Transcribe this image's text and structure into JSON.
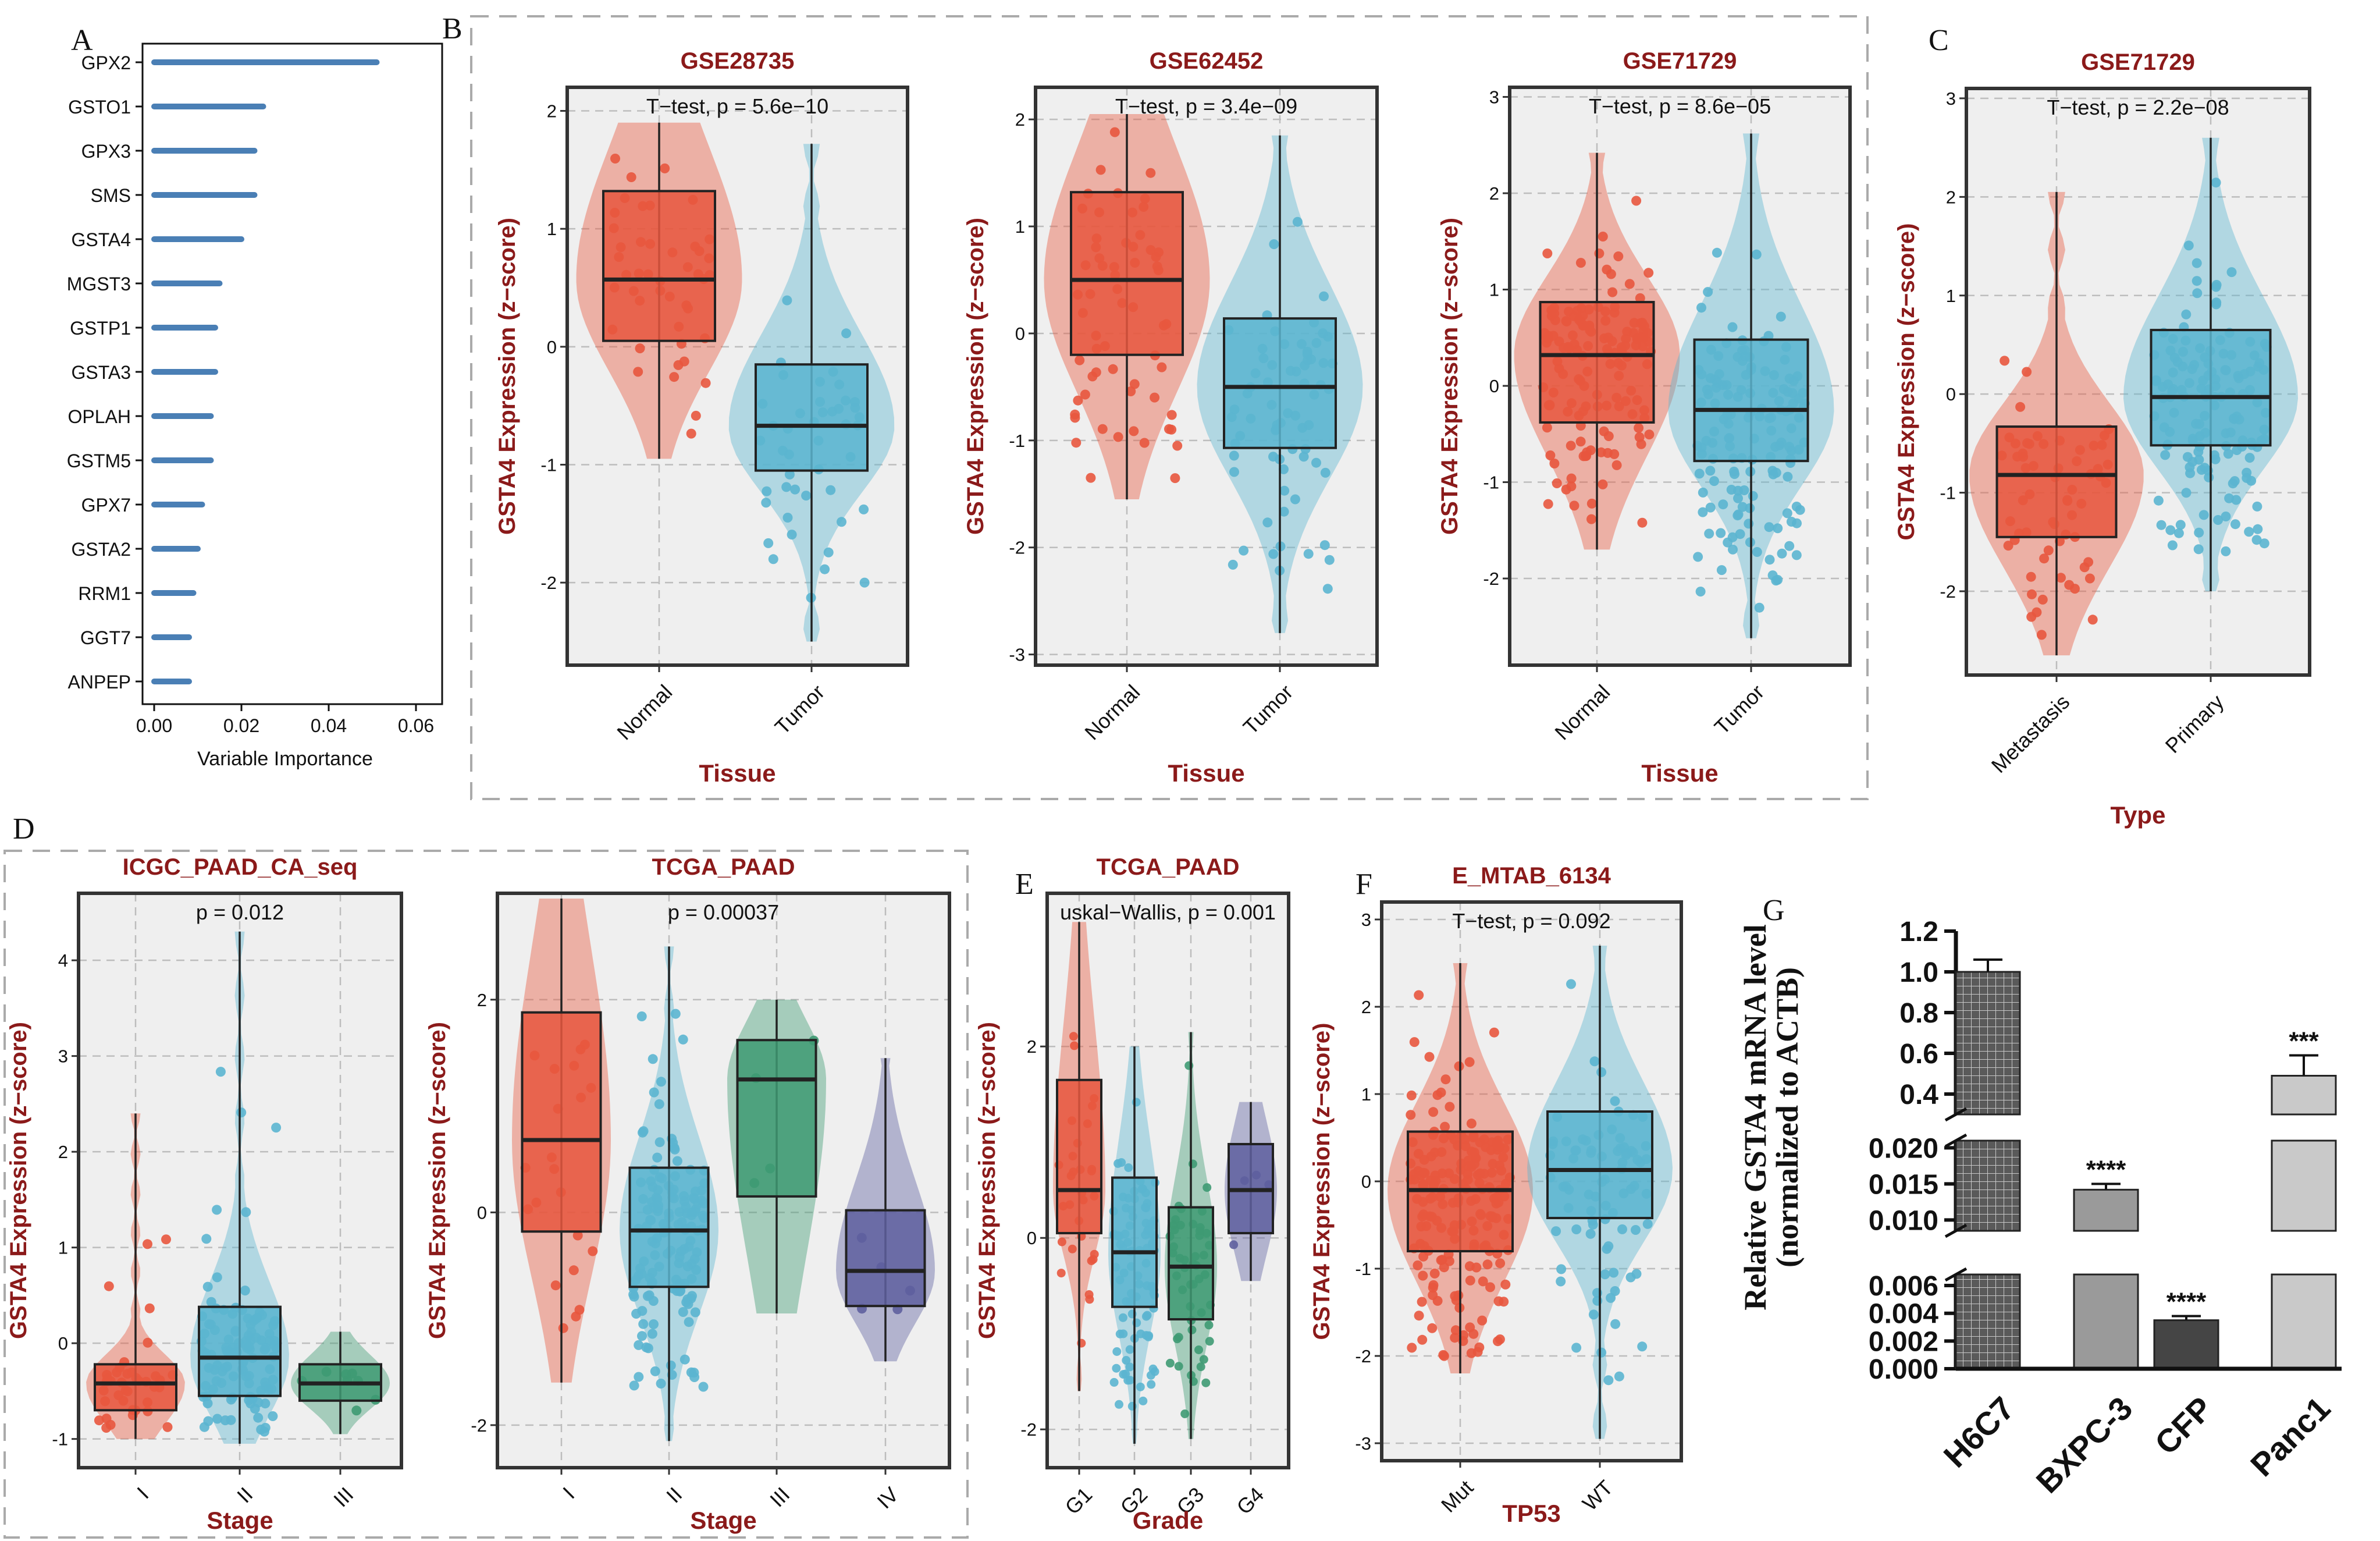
{
  "figure": {
    "panel_letters": [
      "A",
      "B",
      "C",
      "D",
      "E",
      "F",
      "G"
    ],
    "colors": {
      "dark_red": "#8B1A1A",
      "normal_fill": "#E8573E",
      "tumor_fill": "#5BB5D0",
      "stage3_fill": "#3E9A73",
      "stage4_fill": "#5E5F9F",
      "bar_blue": "#4A7FB5",
      "panel_bg": "#EFEFEF"
    }
  },
  "chart_data": [
    {
      "id": "A",
      "type": "bar",
      "orientation": "horizontal",
      "categories": [
        "GPX2",
        "GSTO1",
        "GPX3",
        "SMS",
        "GSTA4",
        "MGST3",
        "GSTP1",
        "GSTA3",
        "OPLAH",
        "GSTM5",
        "GPX7",
        "GSTA2",
        "RRM1",
        "GGT7",
        "ANPEP"
      ],
      "values": [
        0.051,
        0.025,
        0.023,
        0.023,
        0.02,
        0.015,
        0.014,
        0.014,
        0.013,
        0.013,
        0.011,
        0.01,
        0.009,
        0.008,
        0.008
      ],
      "xlabel": "Variable Importance",
      "xticks": [
        "0.00",
        "0.02",
        "0.04",
        "0.06"
      ],
      "xlim": [
        0,
        0.06
      ]
    },
    {
      "id": "B1",
      "type": "violin-box",
      "title": "GSE28735",
      "annotation": "T−test, p = 5.6e−10",
      "xlabel": "Tissue",
      "ylabel": "GSTA4 Expression (z−score)",
      "ylim": [
        -2.7,
        2.2
      ],
      "yticks": [
        -2,
        -1,
        0,
        1,
        2
      ],
      "groups": [
        {
          "name": "Normal",
          "n": 45,
          "min": -0.95,
          "q1": 0.05,
          "median": 0.57,
          "q3": 1.32,
          "max": 1.9
        },
        {
          "name": "Tumor",
          "n": 45,
          "min": -2.5,
          "q1": -1.05,
          "median": -0.67,
          "q3": -0.15,
          "max": 1.72
        }
      ]
    },
    {
      "id": "B2",
      "type": "violin-box",
      "title": "GSE62452",
      "annotation": "T−test, p = 3.4e−09",
      "xlabel": "Tissue",
      "ylabel": "GSTA4 Expression (z−score)",
      "ylim": [
        -3.1,
        2.3
      ],
      "yticks": [
        -3,
        -2,
        -1,
        0,
        1,
        2
      ],
      "groups": [
        {
          "name": "Normal",
          "n": 61,
          "min": -1.55,
          "q1": -0.2,
          "median": 0.5,
          "q3": 1.32,
          "max": 2.05
        },
        {
          "name": "Tumor",
          "n": 69,
          "min": -2.8,
          "q1": -1.07,
          "median": -0.5,
          "q3": 0.14,
          "max": 1.85
        }
      ]
    },
    {
      "id": "B3",
      "type": "violin-box",
      "title": "GSE71729",
      "annotation": "T−test, p = 8.6e−05",
      "xlabel": "Tissue",
      "ylabel": "GSTA4 Expression (z−score)",
      "ylim": [
        -2.9,
        3.1
      ],
      "yticks": [
        -2,
        -1,
        0,
        1,
        2,
        3
      ],
      "groups": [
        {
          "name": "Normal",
          "n": 145,
          "min": -1.7,
          "q1": -0.38,
          "median": 0.32,
          "q3": 0.87,
          "max": 2.42
        },
        {
          "name": "Tumor",
          "n": 145,
          "min": -2.62,
          "q1": -0.78,
          "median": -0.25,
          "q3": 0.48,
          "max": 2.62
        }
      ]
    },
    {
      "id": "C",
      "type": "violin-box",
      "title": "GSE71729",
      "annotation": "T−test, p = 2.2e−08",
      "xlabel": "Type",
      "ylabel": "GSTA4 Expression (z−score)",
      "ylim": [
        -2.85,
        3.1
      ],
      "yticks": [
        -2,
        -1,
        0,
        1,
        2,
        3
      ],
      "groups": [
        {
          "name": "Metastasis",
          "n": 61,
          "min": -2.65,
          "q1": -1.45,
          "median": -0.82,
          "q3": -0.33,
          "max": 2.05
        },
        {
          "name": "Primary",
          "n": 145,
          "min": -2.0,
          "q1": -0.52,
          "median": -0.03,
          "q3": 0.65,
          "max": 2.6
        }
      ]
    },
    {
      "id": "D1",
      "type": "violin-box",
      "title": "ICGC_PAAD_CA_seq",
      "annotation": "p = 0.012",
      "xlabel": "Stage",
      "ylabel": "GSTA4 Expression (z−score)",
      "ylim": [
        -1.3,
        4.7
      ],
      "yticks": [
        -1,
        0,
        1,
        2,
        3,
        4
      ],
      "groups": [
        {
          "name": "I",
          "n": 39,
          "min": -1.0,
          "q1": -0.7,
          "median": -0.42,
          "q3": -0.22,
          "max": 2.4
        },
        {
          "name": "II",
          "n": 110,
          "min": -1.05,
          "q1": -0.55,
          "median": -0.15,
          "q3": 0.38,
          "max": 4.3
        },
        {
          "name": "III",
          "n": 8,
          "min": -0.95,
          "q1": -0.6,
          "median": -0.42,
          "q3": -0.22,
          "max": 0.12
        }
      ]
    },
    {
      "id": "D2",
      "type": "violin-box",
      "title": "TCGA_PAAD",
      "annotation": "p = 0.00037",
      "xlabel": "Stage",
      "ylabel": "GSTA4 Expression (z−score)",
      "ylim": [
        -2.4,
        3.0
      ],
      "yticks": [
        -2,
        0,
        2
      ],
      "groups": [
        {
          "name": "I",
          "n": 21,
          "min": -1.6,
          "q1": -0.18,
          "median": 0.68,
          "q3": 1.88,
          "max": 2.95
        },
        {
          "name": "II",
          "n": 144,
          "min": -2.15,
          "q1": -0.7,
          "median": -0.17,
          "q3": 0.42,
          "max": 2.5
        },
        {
          "name": "III",
          "n": 4,
          "min": -0.95,
          "q1": 0.15,
          "median": 1.25,
          "q3": 1.62,
          "max": 2.0
        },
        {
          "name": "IV",
          "n": 5,
          "min": -1.4,
          "q1": -0.88,
          "median": -0.55,
          "q3": 0.02,
          "max": 1.45
        }
      ]
    },
    {
      "id": "E",
      "type": "violin-box",
      "title": "TCGA_PAAD",
      "annotation": "uskal−Wallis, p = 0.001",
      "xlabel": "Grade",
      "ylabel": "GSTA4 Expression (z−score)",
      "ylim": [
        -2.4,
        3.6
      ],
      "yticks": [
        -2,
        0,
        2
      ],
      "groups": [
        {
          "name": "G1",
          "n": 30,
          "min": -1.6,
          "q1": 0.05,
          "median": 0.5,
          "q3": 1.65,
          "max": 3.3
        },
        {
          "name": "G2",
          "n": 95,
          "min": -2.15,
          "q1": -0.72,
          "median": -0.15,
          "q3": 0.63,
          "max": 2.0
        },
        {
          "name": "G3",
          "n": 50,
          "min": -2.1,
          "q1": -0.85,
          "median": -0.3,
          "q3": 0.32,
          "max": 2.15
        },
        {
          "name": "G4",
          "n": 4,
          "min": -0.45,
          "q1": 0.05,
          "median": 0.5,
          "q3": 0.98,
          "max": 1.42
        }
      ]
    },
    {
      "id": "F",
      "type": "violin-box",
      "title": "E_MTAB_6134",
      "annotation": "T−test, p = 0.092",
      "xlabel": "TP53",
      "ylabel": "GSTA4 Expression (z−score)",
      "ylim": [
        -3.2,
        3.2
      ],
      "yticks": [
        -3,
        -2,
        -1,
        0,
        1,
        2,
        3
      ],
      "groups": [
        {
          "name": "Mut",
          "n": 190,
          "min": -2.2,
          "q1": -0.8,
          "median": -0.1,
          "q3": 0.57,
          "max": 2.5
        },
        {
          "name": "WT",
          "n": 80,
          "min": -2.95,
          "q1": -0.42,
          "median": 0.13,
          "q3": 0.8,
          "max": 2.7
        }
      ]
    },
    {
      "id": "G",
      "type": "bar",
      "broken_axis": true,
      "ylabel_line1": "Relative GSTA4 mRNA level",
      "ylabel_line2": "(normalized to ACTB)",
      "categories": [
        "H6C7",
        "BXPC-3",
        "CFP",
        "Panc1"
      ],
      "values": [
        1.0,
        0.0142,
        0.0035,
        0.49
      ],
      "errors": [
        0.06,
        0.0008,
        0.0003,
        0.1
      ],
      "significance": [
        "",
        "****",
        "****",
        "***"
      ],
      "segments": [
        {
          "ylim": [
            0.3,
            1.2
          ],
          "ticks": [
            "1.2",
            "1.0",
            "0.8",
            "0.6",
            "0.4"
          ]
        },
        {
          "ylim": [
            0.0085,
            0.021
          ],
          "ticks": [
            "0.020",
            "0.015",
            "0.010"
          ]
        },
        {
          "ylim": [
            0,
            0.0068
          ],
          "ticks": [
            "0.006",
            "0.004",
            "0.002",
            "0.000"
          ]
        }
      ]
    }
  ]
}
